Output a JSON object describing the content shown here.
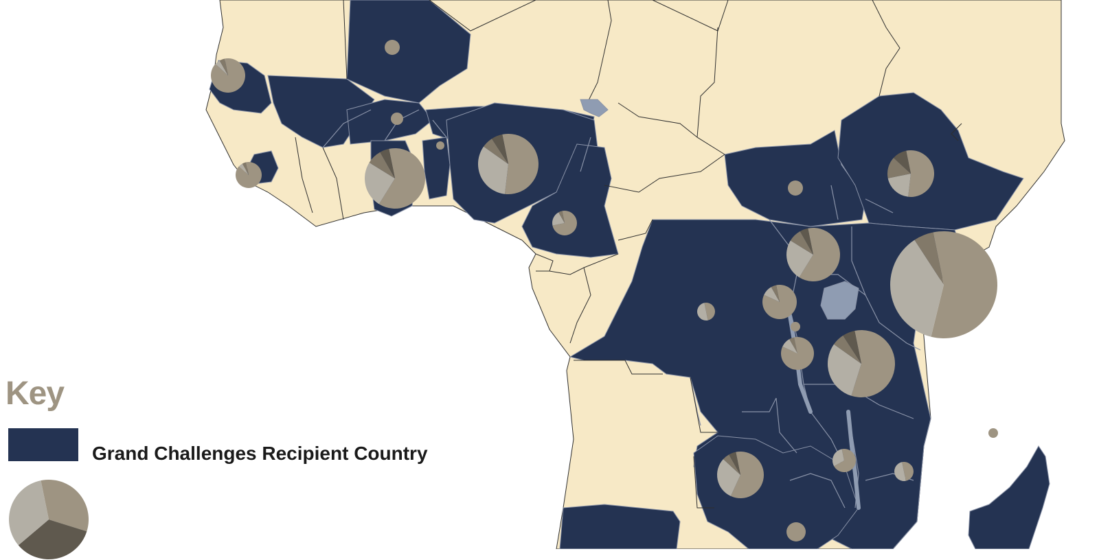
{
  "colors": {
    "background": "#ffffff",
    "other_country": "#f7e9c6",
    "recipient_country": "#243352",
    "lake": "#8f9cb2",
    "border_dark": "#2e2e2e",
    "border_light": "#8a93a8",
    "pie_main": "#9e9482",
    "pie_light": "#b3afa5",
    "pie_dark": "#827969",
    "pie_darkest": "#5f594e",
    "key_title": "#9e9482"
  },
  "key": {
    "title": "Key",
    "recipient_label": "Grand Challenges Recipient Country",
    "pie_icon": "pie-chart-icon"
  }
}
